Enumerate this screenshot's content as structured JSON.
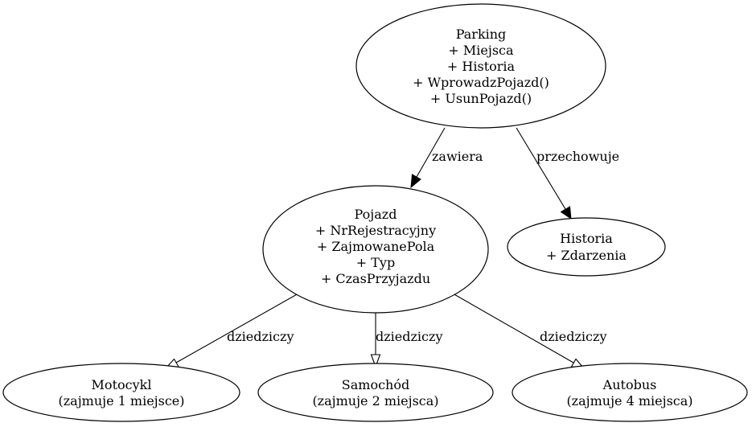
{
  "nodes": {
    "parking": {
      "title": "Parking",
      "members": [
        "+ Miejsca",
        "+ Historia",
        "+ WprowadzPojazd()",
        "+ UsunPojazd()"
      ]
    },
    "pojazd": {
      "title": "Pojazd",
      "members": [
        "+ NrRejestracyjny",
        "+ ZajmowanePola",
        "+ Typ",
        "+ CzasPrzyjazdu"
      ]
    },
    "historia": {
      "title": "Historia",
      "members": [
        "+ Zdarzenia"
      ]
    },
    "motocykl": {
      "title": "Motocykl",
      "members": [
        "(zajmuje 1 miejsce)"
      ]
    },
    "samochod": {
      "title": "Samochód",
      "members": [
        "(zajmuje 2 miejsca)"
      ]
    },
    "autobus": {
      "title": "Autobus",
      "members": [
        "(zajmuje 4 miejsca)"
      ]
    }
  },
  "edges": {
    "parking_pojazd": {
      "label": "zawiera",
      "type": "association"
    },
    "parking_historia": {
      "label": "przechowuje",
      "type": "association"
    },
    "pojazd_motocykl": {
      "label": "dziedziczy",
      "type": "inheritance"
    },
    "pojazd_samochod": {
      "label": "dziedziczy",
      "type": "inheritance"
    },
    "pojazd_autobus": {
      "label": "dziedziczy",
      "type": "inheritance"
    }
  }
}
